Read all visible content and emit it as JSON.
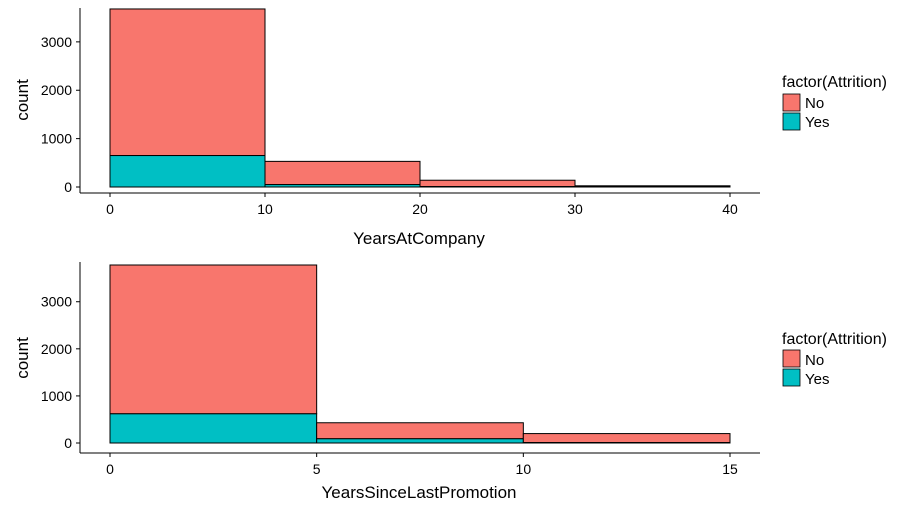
{
  "chart_data": [
    {
      "type": "bar",
      "subtype": "stacked-histogram",
      "xlabel": "YearsAtCompany",
      "ylabel": "count",
      "xlim": [
        0,
        40
      ],
      "ylim": [
        0,
        3700
      ],
      "xticks": [
        "0",
        "10",
        "20",
        "30",
        "40"
      ],
      "yticks": [
        "0",
        "1000",
        "2000",
        "3000"
      ],
      "bins": [
        [
          0,
          10
        ],
        [
          10,
          20
        ],
        [
          20,
          30
        ],
        [
          30,
          40
        ]
      ],
      "series": [
        {
          "name": "No",
          "values": [
            3030,
            480,
            130,
            20
          ]
        },
        {
          "name": "Yes",
          "values": [
            650,
            50,
            10,
            5
          ]
        }
      ],
      "grid": false,
      "legend": {
        "title": "factor(Attrition)",
        "position": "right",
        "entries": [
          "No",
          "Yes"
        ]
      }
    },
    {
      "type": "bar",
      "subtype": "stacked-histogram",
      "xlabel": "YearsSinceLastPromotion",
      "ylabel": "count",
      "xlim": [
        0,
        15
      ],
      "ylim": [
        0,
        3780
      ],
      "xticks": [
        "0",
        "5",
        "10",
        "15"
      ],
      "yticks": [
        "0",
        "1000",
        "2000",
        "3000"
      ],
      "bins": [
        [
          0,
          5
        ],
        [
          5,
          10
        ],
        [
          10,
          15
        ]
      ],
      "series": [
        {
          "name": "No",
          "values": [
            3160,
            340,
            190
          ]
        },
        {
          "name": "Yes",
          "values": [
            620,
            90,
            10
          ]
        }
      ],
      "grid": false,
      "legend": {
        "title": "factor(Attrition)",
        "position": "right",
        "entries": [
          "No",
          "Yes"
        ]
      }
    }
  ],
  "colors": {
    "No": "#F8766D",
    "Yes": "#00BFC4",
    "axis": "#000000"
  }
}
